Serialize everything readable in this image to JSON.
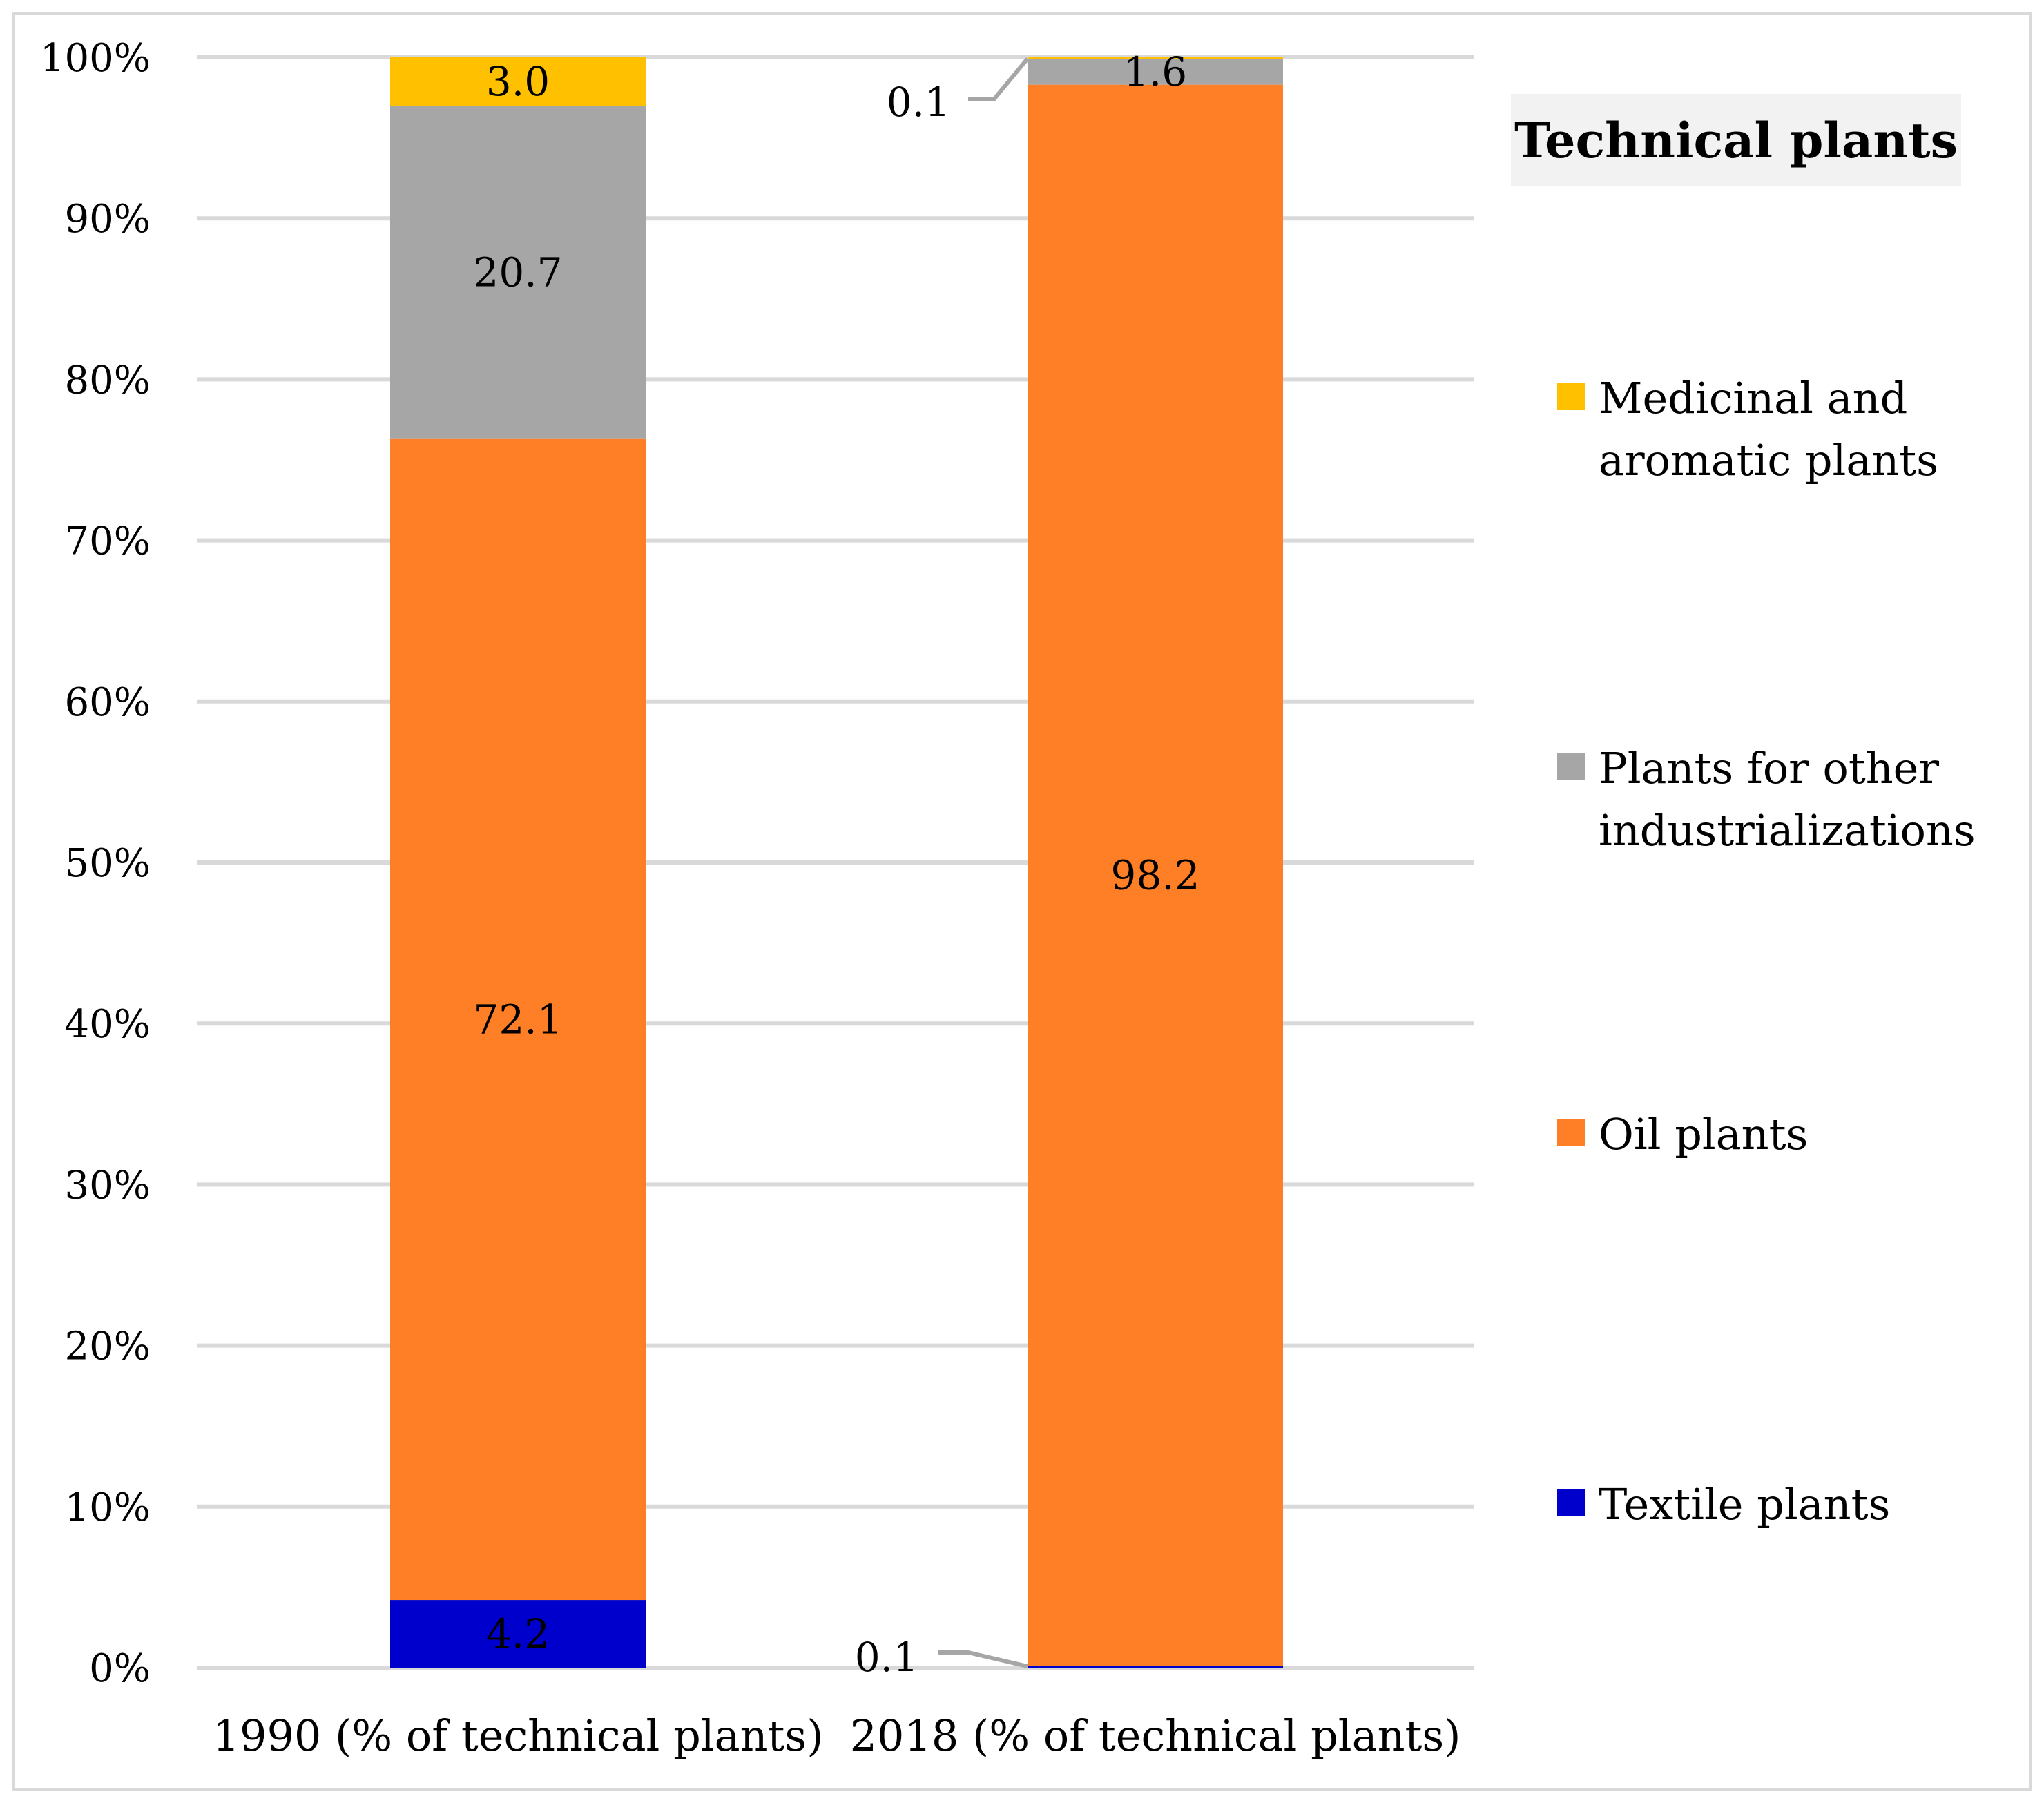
{
  "chart_data": {
    "type": "bar",
    "stacked": true,
    "title": "Technical plants",
    "xlabel": "",
    "ylabel": "",
    "ylim": [
      0,
      100
    ],
    "y_tick_labels": [
      "0%",
      "10%",
      "20%",
      "30%",
      "40%",
      "50%",
      "60%",
      "70%",
      "80%",
      "90%",
      "100%"
    ],
    "grid": true,
    "legend_position": "right",
    "categories": [
      "1990 (% of technical plants)",
      "2018 (% of technical plants)"
    ],
    "series": [
      {
        "name": "Textile plants",
        "color": "#0000cc",
        "values": [
          4.2,
          0.1
        ],
        "labels": [
          "4.2",
          "0.1"
        ]
      },
      {
        "name": "Oil plants",
        "color": "#ff7f27",
        "values": [
          72.1,
          98.2
        ],
        "labels": [
          "72.1",
          "98.2"
        ]
      },
      {
        "name": "Plants for other industrializations",
        "color": "#a6a6a6",
        "values": [
          20.7,
          1.6
        ],
        "labels": [
          "20.7",
          "1.6"
        ]
      },
      {
        "name": "Medicinal and aromatic plants",
        "color": "#ffc000",
        "values": [
          3.0,
          0.1
        ],
        "labels": [
          "3.0",
          "0.1"
        ]
      }
    ],
    "legend_entries": [
      {
        "lines": [
          "Medicinal and",
          "aromatic plants"
        ],
        "color": "#ffc000"
      },
      {
        "lines": [
          "Plants for other",
          "industrializations"
        ],
        "color": "#a6a6a6"
      },
      {
        "lines": [
          "Oil plants"
        ],
        "color": "#ff7f27"
      },
      {
        "lines": [
          "Textile plants"
        ],
        "color": "#0000cc"
      }
    ],
    "colors": {
      "gridline": "#d9d9d9",
      "legend_title_bg": "#f2f2f2",
      "leader_line": "#a6a6a6"
    }
  }
}
